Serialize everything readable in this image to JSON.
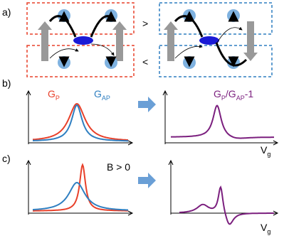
{
  "panels": {
    "a": {
      "label": "a)",
      "upper_relation": ">",
      "lower_relation": "<"
    },
    "b": {
      "label": "b)",
      "legend_p": {
        "text": "G",
        "sub": "P"
      },
      "legend_ap": {
        "text": "G",
        "sub": "AP"
      },
      "ratio": {
        "g1": "G",
        "sub1": "P",
        "g2": "/G",
        "sub2": "AP",
        "tail": "-1"
      },
      "x_label": {
        "text": "V",
        "sub": "g"
      }
    },
    "c": {
      "label": "c)",
      "field": "B > 0",
      "x_label": {
        "text": "V",
        "sub": "g"
      }
    }
  }
}
